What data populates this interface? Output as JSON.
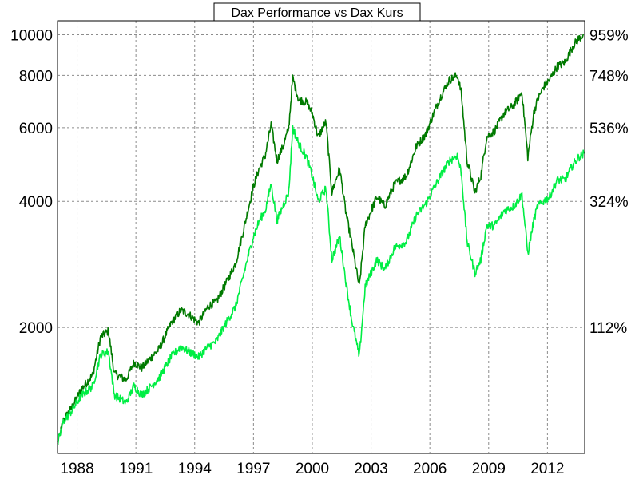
{
  "chart_data": {
    "type": "line",
    "title": "Dax Performance vs Dax Kurs",
    "yscale": "log",
    "ylim": [
      1000,
      10800
    ],
    "xlim": [
      1987.0,
      2013.9
    ],
    "grid": true,
    "x_ticks": [
      "1988",
      "1991",
      "1994",
      "1997",
      "2000",
      "2003",
      "2006",
      "2009",
      "2012"
    ],
    "y_ticks_left": [
      {
        "value": 2000,
        "label": "2000"
      },
      {
        "value": 4000,
        "label": "4000"
      },
      {
        "value": 6000,
        "label": "6000"
      },
      {
        "value": 8000,
        "label": "8000"
      },
      {
        "value": 10000,
        "label": "10000"
      }
    ],
    "y_ticks_right": [
      {
        "value": 2000,
        "label": "112%"
      },
      {
        "value": 4000,
        "label": "324%"
      },
      {
        "value": 6000,
        "label": "536%"
      },
      {
        "value": 8000,
        "label": "748%"
      },
      {
        "value": 10000,
        "label": "959%"
      }
    ],
    "series": [
      {
        "color": "#007a00",
        "x": [
          1987.0,
          1987.3,
          1987.7,
          1988.2,
          1988.8,
          1989.2,
          1989.6,
          1989.9,
          1990.5,
          1990.9,
          1991.3,
          1991.8,
          1992.2,
          1992.8,
          1993.3,
          1993.7,
          1994.2,
          1994.7,
          1995.1,
          1995.6,
          1996.1,
          1996.6,
          1997.0,
          1997.3,
          1997.6,
          1997.9,
          1998.2,
          1998.5,
          1998.8,
          1999.0,
          1999.3,
          1999.7,
          2000.0,
          2000.3,
          2000.7,
          2001.0,
          2001.4,
          2001.7,
          2002.0,
          2002.4,
          2002.7,
          2003.0,
          2003.3,
          2003.7,
          2004.2,
          2004.8,
          2005.3,
          2005.8,
          2006.2,
          2006.6,
          2007.0,
          2007.4,
          2007.6,
          2007.9,
          2008.3,
          2008.6,
          2008.9,
          2009.3,
          2009.8,
          2010.3,
          2010.7,
          2011.0,
          2011.3,
          2011.5,
          2011.8,
          2012.1,
          2012.5,
          2012.9,
          2013.3,
          2013.6,
          2013.85
        ],
        "values": [
          1050,
          1200,
          1280,
          1420,
          1540,
          1900,
          1960,
          1550,
          1500,
          1650,
          1600,
          1700,
          1780,
          2050,
          2200,
          2150,
          2050,
          2250,
          2300,
          2550,
          2850,
          3600,
          4350,
          4800,
          5150,
          6100,
          5000,
          5400,
          6000,
          7900,
          7000,
          6900,
          6500,
          5700,
          6200,
          4200,
          4800,
          3800,
          3200,
          2500,
          3500,
          3800,
          4100,
          3900,
          4400,
          4600,
          5400,
          5800,
          6500,
          7200,
          7800,
          8000,
          7300,
          5000,
          4200,
          4600,
          5700,
          5900,
          6500,
          6800,
          7300,
          5100,
          6500,
          7000,
          7500,
          7800,
          8400,
          8600,
          9400,
          9800,
          10000
        ]
      },
      {
        "color": "#00ee44",
        "x": [
          1987.0,
          1987.3,
          1987.7,
          1988.2,
          1988.8,
          1989.2,
          1989.6,
          1989.9,
          1990.5,
          1990.9,
          1991.3,
          1991.8,
          1992.2,
          1992.8,
          1993.3,
          1993.7,
          1994.2,
          1994.7,
          1995.1,
          1995.6,
          1996.1,
          1996.6,
          1997.0,
          1997.3,
          1997.6,
          1997.9,
          1998.2,
          1998.5,
          1998.8,
          1999.0,
          1999.3,
          1999.7,
          2000.0,
          2000.3,
          2000.7,
          2001.0,
          2001.4,
          2001.7,
          2002.0,
          2002.4,
          2002.7,
          2003.0,
          2003.3,
          2003.7,
          2004.2,
          2004.8,
          2005.3,
          2005.8,
          2006.2,
          2006.6,
          2007.0,
          2007.4,
          2007.6,
          2007.9,
          2008.3,
          2008.6,
          2008.9,
          2009.3,
          2009.8,
          2010.3,
          2010.7,
          2011.0,
          2011.3,
          2011.5,
          2011.8,
          2012.1,
          2012.5,
          2012.9,
          2013.3,
          2013.6,
          2013.85
        ],
        "values": [
          1050,
          1190,
          1260,
          1370,
          1450,
          1720,
          1750,
          1380,
          1320,
          1450,
          1380,
          1450,
          1520,
          1700,
          1800,
          1750,
          1700,
          1800,
          1850,
          2050,
          2250,
          2800,
          3300,
          3600,
          3800,
          4400,
          3600,
          3900,
          4200,
          6000,
          5500,
          5100,
          4600,
          4000,
          4300,
          2900,
          3300,
          2600,
          2100,
          1700,
          2500,
          2700,
          2900,
          2750,
          3100,
          3200,
          3700,
          3950,
          4300,
          4650,
          5000,
          5150,
          4700,
          3200,
          2700,
          2900,
          3500,
          3500,
          3800,
          3900,
          4150,
          3000,
          3600,
          3900,
          4000,
          4100,
          4500,
          4500,
          4900,
          5100,
          5200
        ]
      }
    ]
  }
}
